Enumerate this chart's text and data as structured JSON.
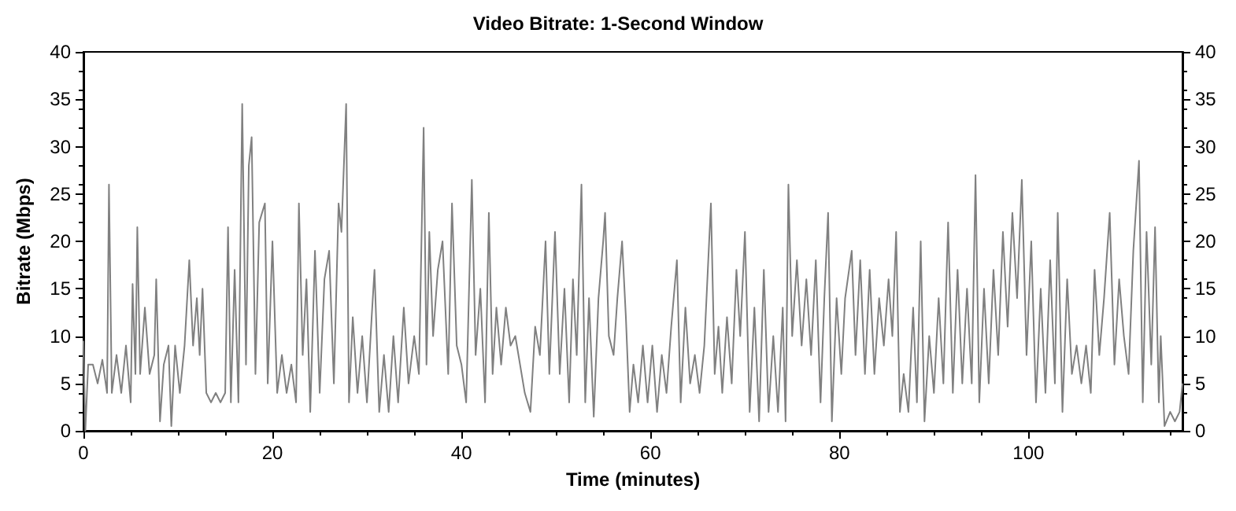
{
  "chart_data": {
    "type": "line",
    "title": "Video Bitrate: 1-Second Window",
    "xlabel": "Time (minutes)",
    "ylabel": "Bitrate (Mbps)",
    "x": [
      0,
      0.2,
      0.5,
      1,
      1.5,
      2,
      2.5,
      2.7,
      3,
      3.5,
      4,
      4.5,
      5,
      5.2,
      5.5,
      5.7,
      6,
      6.5,
      7,
      7.5,
      7.7,
      8.1,
      8.5,
      9,
      9.3,
      9.7,
      10.2,
      10.7,
      11.2,
      11.6,
      12,
      12.3,
      12.6,
      13,
      13.5,
      14,
      14.5,
      15,
      15.3,
      15.6,
      16,
      16.4,
      16.8,
      17.2,
      17.5,
      17.8,
      18.2,
      18.6,
      19.2,
      19.5,
      20,
      20.5,
      21,
      21.5,
      22,
      22.5,
      22.8,
      23.2,
      23.6,
      24,
      24.5,
      25,
      25.5,
      26,
      26.5,
      27,
      27.3,
      27.8,
      28.1,
      28.5,
      29,
      29.5,
      30,
      30.5,
      30.8,
      31.3,
      31.8,
      32.3,
      32.8,
      33.3,
      33.9,
      34.4,
      35,
      35.5,
      36,
      36.3,
      36.6,
      37,
      37.5,
      38,
      38.6,
      39,
      39.5,
      40,
      40.5,
      41.1,
      41.5,
      42,
      42.5,
      42.9,
      43.3,
      43.7,
      44.2,
      44.7,
      45.2,
      45.7,
      46.2,
      46.7,
      47.3,
      47.8,
      48.3,
      48.9,
      49.3,
      49.9,
      50.4,
      50.9,
      51.4,
      51.8,
      52.2,
      52.7,
      53.1,
      53.5,
      54,
      54.5,
      55,
      55.2,
      55.6,
      56.1,
      56.5,
      57,
      57.4,
      57.8,
      58.2,
      58.7,
      59.2,
      59.7,
      60.2,
      60.7,
      61.2,
      61.7,
      62.2,
      62.8,
      63.2,
      63.7,
      64.2,
      64.7,
      65.2,
      65.7,
      66.4,
      66.8,
      67.2,
      67.6,
      68.1,
      68.6,
      69.1,
      69.5,
      70,
      70.5,
      71,
      71.5,
      72,
      72.5,
      73,
      73.5,
      74,
      74.3,
      74.6,
      75,
      75.5,
      76,
      76.5,
      77,
      77.5,
      78,
      78.4,
      78.8,
      79.2,
      79.7,
      80.2,
      80.6,
      81.3,
      81.7,
      82.2,
      82.7,
      83.2,
      83.7,
      84.2,
      84.7,
      85.2,
      85.6,
      86,
      86.4,
      86.8,
      87.3,
      87.8,
      88.2,
      88.6,
      89,
      89.5,
      90,
      90.5,
      91,
      91.5,
      92,
      92.5,
      93,
      93.5,
      94,
      94.4,
      94.8,
      95.3,
      95.8,
      96.3,
      96.8,
      97.3,
      97.8,
      98.3,
      98.8,
      99.3,
      99.8,
      100.3,
      100.8,
      101.3,
      101.8,
      102.3,
      102.8,
      103.1,
      103.6,
      104.1,
      104.6,
      105.1,
      105.6,
      106.1,
      106.6,
      107,
      107.5,
      108,
      108.6,
      109.1,
      109.6,
      110.1,
      110.6,
      111.1,
      111.7,
      112.1,
      112.5,
      113,
      113.4,
      113.8,
      114,
      114.4,
      115,
      115.5,
      116,
      116.3
    ],
    "series": [
      {
        "color": "#808080",
        "values": [
          9.5,
          0,
          7,
          7,
          5,
          7.5,
          4,
          26,
          4,
          8,
          4,
          9,
          3,
          15.5,
          6,
          21.5,
          6,
          13,
          6,
          8,
          16,
          1,
          7,
          9,
          0.5,
          9,
          4,
          9,
          18,
          9,
          14,
          8,
          15,
          4,
          3,
          4,
          3,
          4,
          21.5,
          3,
          17,
          3,
          34.5,
          7,
          28,
          31,
          6,
          22,
          24,
          5,
          20,
          4,
          8,
          4,
          7,
          3,
          24,
          8,
          16,
          2,
          19,
          4,
          16,
          19,
          5,
          24,
          21,
          34.5,
          3,
          12,
          4,
          10,
          3,
          12,
          17,
          2,
          8,
          2,
          10,
          3,
          13,
          5,
          10,
          6,
          32,
          7,
          21,
          10,
          17,
          20,
          6,
          24,
          9,
          7,
          3,
          26.5,
          8,
          15,
          3,
          23,
          6,
          13,
          7,
          13,
          9,
          10,
          7,
          4,
          2,
          11,
          8,
          20,
          6,
          21,
          6,
          15,
          3,
          16,
          8,
          26,
          3,
          14,
          1.5,
          14,
          20,
          23,
          10,
          8,
          14,
          20,
          12,
          2,
          7,
          3,
          9,
          3,
          9,
          2,
          8,
          4,
          11,
          18,
          3,
          13,
          5,
          8,
          4,
          9,
          24,
          6,
          11,
          4,
          12,
          5,
          17,
          10,
          21,
          2,
          13,
          1,
          17,
          2,
          10,
          2,
          13,
          1,
          26,
          10,
          18,
          9,
          16,
          8,
          18,
          3,
          14,
          23,
          1,
          14,
          6,
          14,
          19,
          8,
          18,
          6,
          17,
          6,
          14,
          9,
          16,
          10,
          21,
          2,
          6,
          2,
          13,
          3,
          20,
          1,
          10,
          4,
          14,
          5,
          22,
          4,
          17,
          5,
          15,
          5,
          27,
          3,
          15,
          5,
          17,
          8,
          21,
          11,
          23,
          14,
          26.5,
          8,
          20,
          3,
          15,
          4,
          18,
          5,
          23,
          2,
          16,
          6,
          9,
          5,
          9,
          4,
          17,
          8,
          14,
          23,
          7,
          16,
          10,
          6,
          19,
          28.5,
          3,
          21,
          7,
          21.5,
          3,
          10,
          0.5,
          2,
          1,
          2,
          5
        ]
      }
    ],
    "xlim": [
      0,
      116.3
    ],
    "xticks": [
      0,
      20,
      40,
      60,
      80,
      100
    ],
    "ylim": [
      0,
      40
    ],
    "yticks": [
      0,
      5,
      10,
      15,
      20,
      25,
      30,
      35,
      40
    ],
    "y2lim": [
      0,
      40
    ],
    "y2ticks": [
      0,
      5,
      10,
      15,
      20,
      25,
      30,
      35,
      40
    ],
    "marker": "none",
    "line_style": "solid"
  }
}
